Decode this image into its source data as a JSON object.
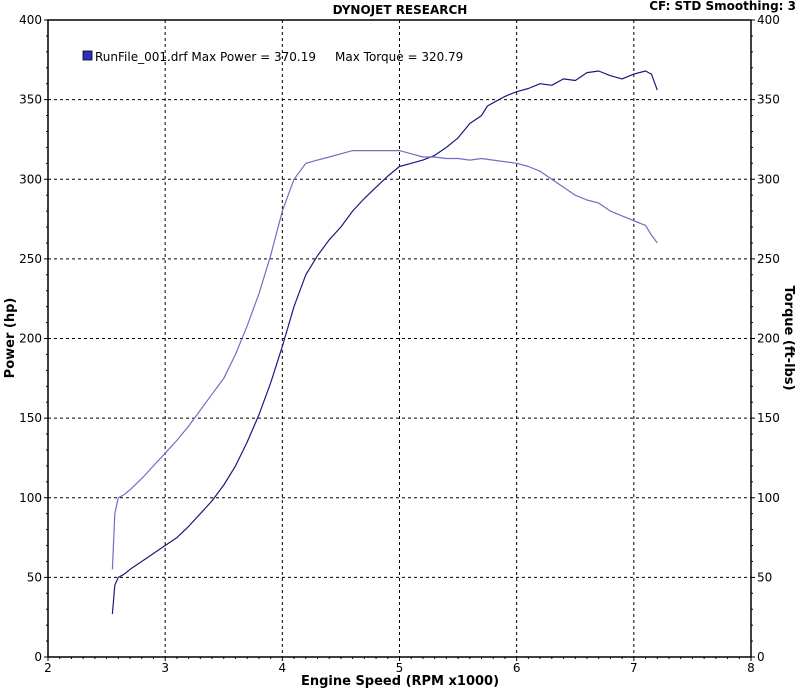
{
  "chart_data": {
    "type": "line",
    "title": "DYNOJET RESEARCH",
    "header_right": "CF: STD  Smoothing: 3",
    "legend_text": "RunFile_001.drf Max Power = 370.19     Max Torque = 320.79",
    "xlabel": "Engine Speed (RPM x1000)",
    "ylabel_left": "Power (hp)",
    "ylabel_right": "Torque (ft-lbs)",
    "xlim": [
      2,
      8
    ],
    "ylim": [
      0,
      400
    ],
    "x_ticks": [
      "2",
      "3",
      "4",
      "5",
      "6",
      "7",
      "8"
    ],
    "y_ticks": [
      "0",
      "50",
      "100",
      "150",
      "200",
      "250",
      "300",
      "350",
      "400"
    ],
    "grid": true,
    "colors": {
      "power": "#1a1a7a",
      "torque": "#6f6fc0",
      "legend_swatch": "#3030c0"
    },
    "series": [
      {
        "key": "power",
        "x": [
          2.55,
          2.57,
          2.6,
          2.65,
          2.7,
          2.8,
          2.9,
          3.0,
          3.1,
          3.2,
          3.3,
          3.4,
          3.5,
          3.6,
          3.7,
          3.8,
          3.9,
          4.0,
          4.1,
          4.2,
          4.3,
          4.4,
          4.5,
          4.6,
          4.7,
          4.8,
          4.9,
          5.0,
          5.1,
          5.2,
          5.3,
          5.4,
          5.5,
          5.6,
          5.7,
          5.75,
          5.8,
          5.9,
          6.0,
          6.1,
          6.2,
          6.3,
          6.4,
          6.5,
          6.6,
          6.7,
          6.8,
          6.9,
          7.0,
          7.1,
          7.15,
          7.2
        ],
        "values": [
          27,
          45,
          50,
          52,
          55,
          60,
          65,
          70,
          75,
          82,
          90,
          98,
          108,
          120,
          135,
          152,
          172,
          195,
          220,
          240,
          252,
          262,
          270,
          280,
          288,
          295,
          302,
          308,
          310,
          312,
          315,
          320,
          326,
          335,
          340,
          346,
          348,
          352,
          355,
          357,
          360,
          359,
          363,
          362,
          367,
          368,
          365,
          363,
          366,
          368,
          366,
          356
        ]
      },
      {
        "key": "torque",
        "x": [
          2.55,
          2.57,
          2.6,
          2.65,
          2.7,
          2.8,
          2.9,
          3.0,
          3.1,
          3.2,
          3.3,
          3.4,
          3.5,
          3.6,
          3.7,
          3.8,
          3.9,
          4.0,
          4.1,
          4.2,
          4.3,
          4.4,
          4.5,
          4.6,
          4.7,
          4.8,
          4.9,
          5.0,
          5.1,
          5.2,
          5.3,
          5.4,
          5.5,
          5.6,
          5.7,
          5.8,
          5.9,
          6.0,
          6.1,
          6.2,
          6.3,
          6.4,
          6.5,
          6.6,
          6.7,
          6.8,
          6.9,
          7.0,
          7.1,
          7.15,
          7.2
        ],
        "values": [
          55,
          90,
          100,
          102,
          105,
          112,
          120,
          128,
          136,
          145,
          155,
          165,
          175,
          190,
          208,
          228,
          252,
          280,
          300,
          310,
          312,
          314,
          316,
          318,
          318,
          318,
          318,
          318,
          316,
          314,
          314,
          313,
          313,
          312,
          313,
          312,
          311,
          310,
          308,
          305,
          300,
          295,
          290,
          287,
          285,
          280,
          277,
          274,
          271,
          265,
          260
        ]
      }
    ]
  }
}
